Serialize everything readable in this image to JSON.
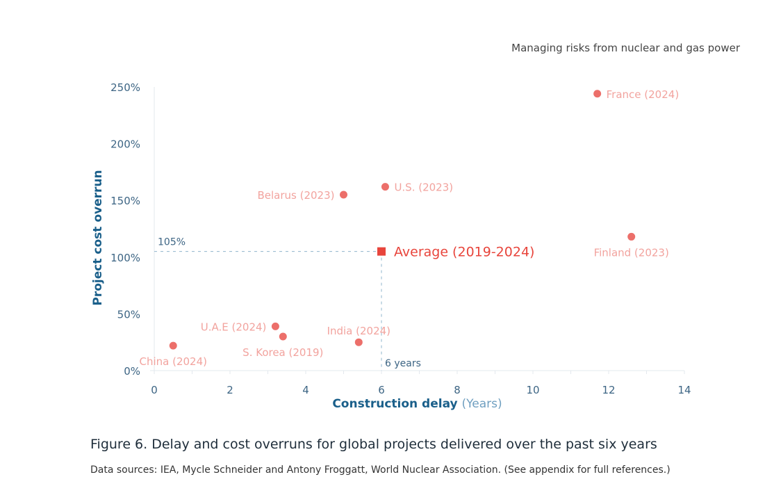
{
  "header": {
    "title": "Managing risks from nuclear and gas power"
  },
  "chart_data": {
    "type": "scatter",
    "xlabel": "Construction delay",
    "xlabel_unit": "(Years)",
    "ylabel": "Project cost overrun",
    "xlim": [
      0,
      14
    ],
    "ylim": [
      0,
      250
    ],
    "xticks": [
      0,
      2,
      4,
      6,
      8,
      10,
      12,
      14
    ],
    "yticks": [
      0,
      50,
      100,
      150,
      200,
      250
    ],
    "ytick_labels": [
      "0%",
      "50%",
      "100%",
      "150%",
      "200%",
      "250%"
    ],
    "points": [
      {
        "label": "France (2024)",
        "x": 11.7,
        "y": 244,
        "label_position": "right"
      },
      {
        "label": "U.S. (2023)",
        "x": 6.1,
        "y": 162,
        "label_position": "right"
      },
      {
        "label": "Belarus (2023)",
        "x": 5.0,
        "y": 155,
        "label_position": "left"
      },
      {
        "label": "Finland (2023)",
        "x": 12.6,
        "y": 118,
        "label_position": "below"
      },
      {
        "label": "U.A.E (2024)",
        "x": 3.2,
        "y": 39,
        "label_position": "left"
      },
      {
        "label": "S. Korea (2019)",
        "x": 3.4,
        "y": 30,
        "label_position": "below"
      },
      {
        "label": "India (2024)",
        "x": 5.4,
        "y": 25,
        "label_position": "above"
      },
      {
        "label": "China (2024)",
        "x": 0.5,
        "y": 22,
        "label_position": "below"
      }
    ],
    "average": {
      "label": "Average (2019-2024)",
      "x": 6,
      "y": 105,
      "x_annotation": "6 years",
      "y_annotation": "105%"
    },
    "colors": {
      "point": "#ec6f6a",
      "point_label": "#f2a39e",
      "average": "#e8453c",
      "axis_text": "#3d6584",
      "axis_title": "#1a5f8a",
      "guide": "#8fb4cc"
    }
  },
  "caption": "Figure 6. Delay and cost overruns for global projects delivered over the past six years",
  "sources": "Data sources: IEA, Mycle Schneider and Antony Froggatt, World Nuclear Association. (See appendix for full references.)"
}
